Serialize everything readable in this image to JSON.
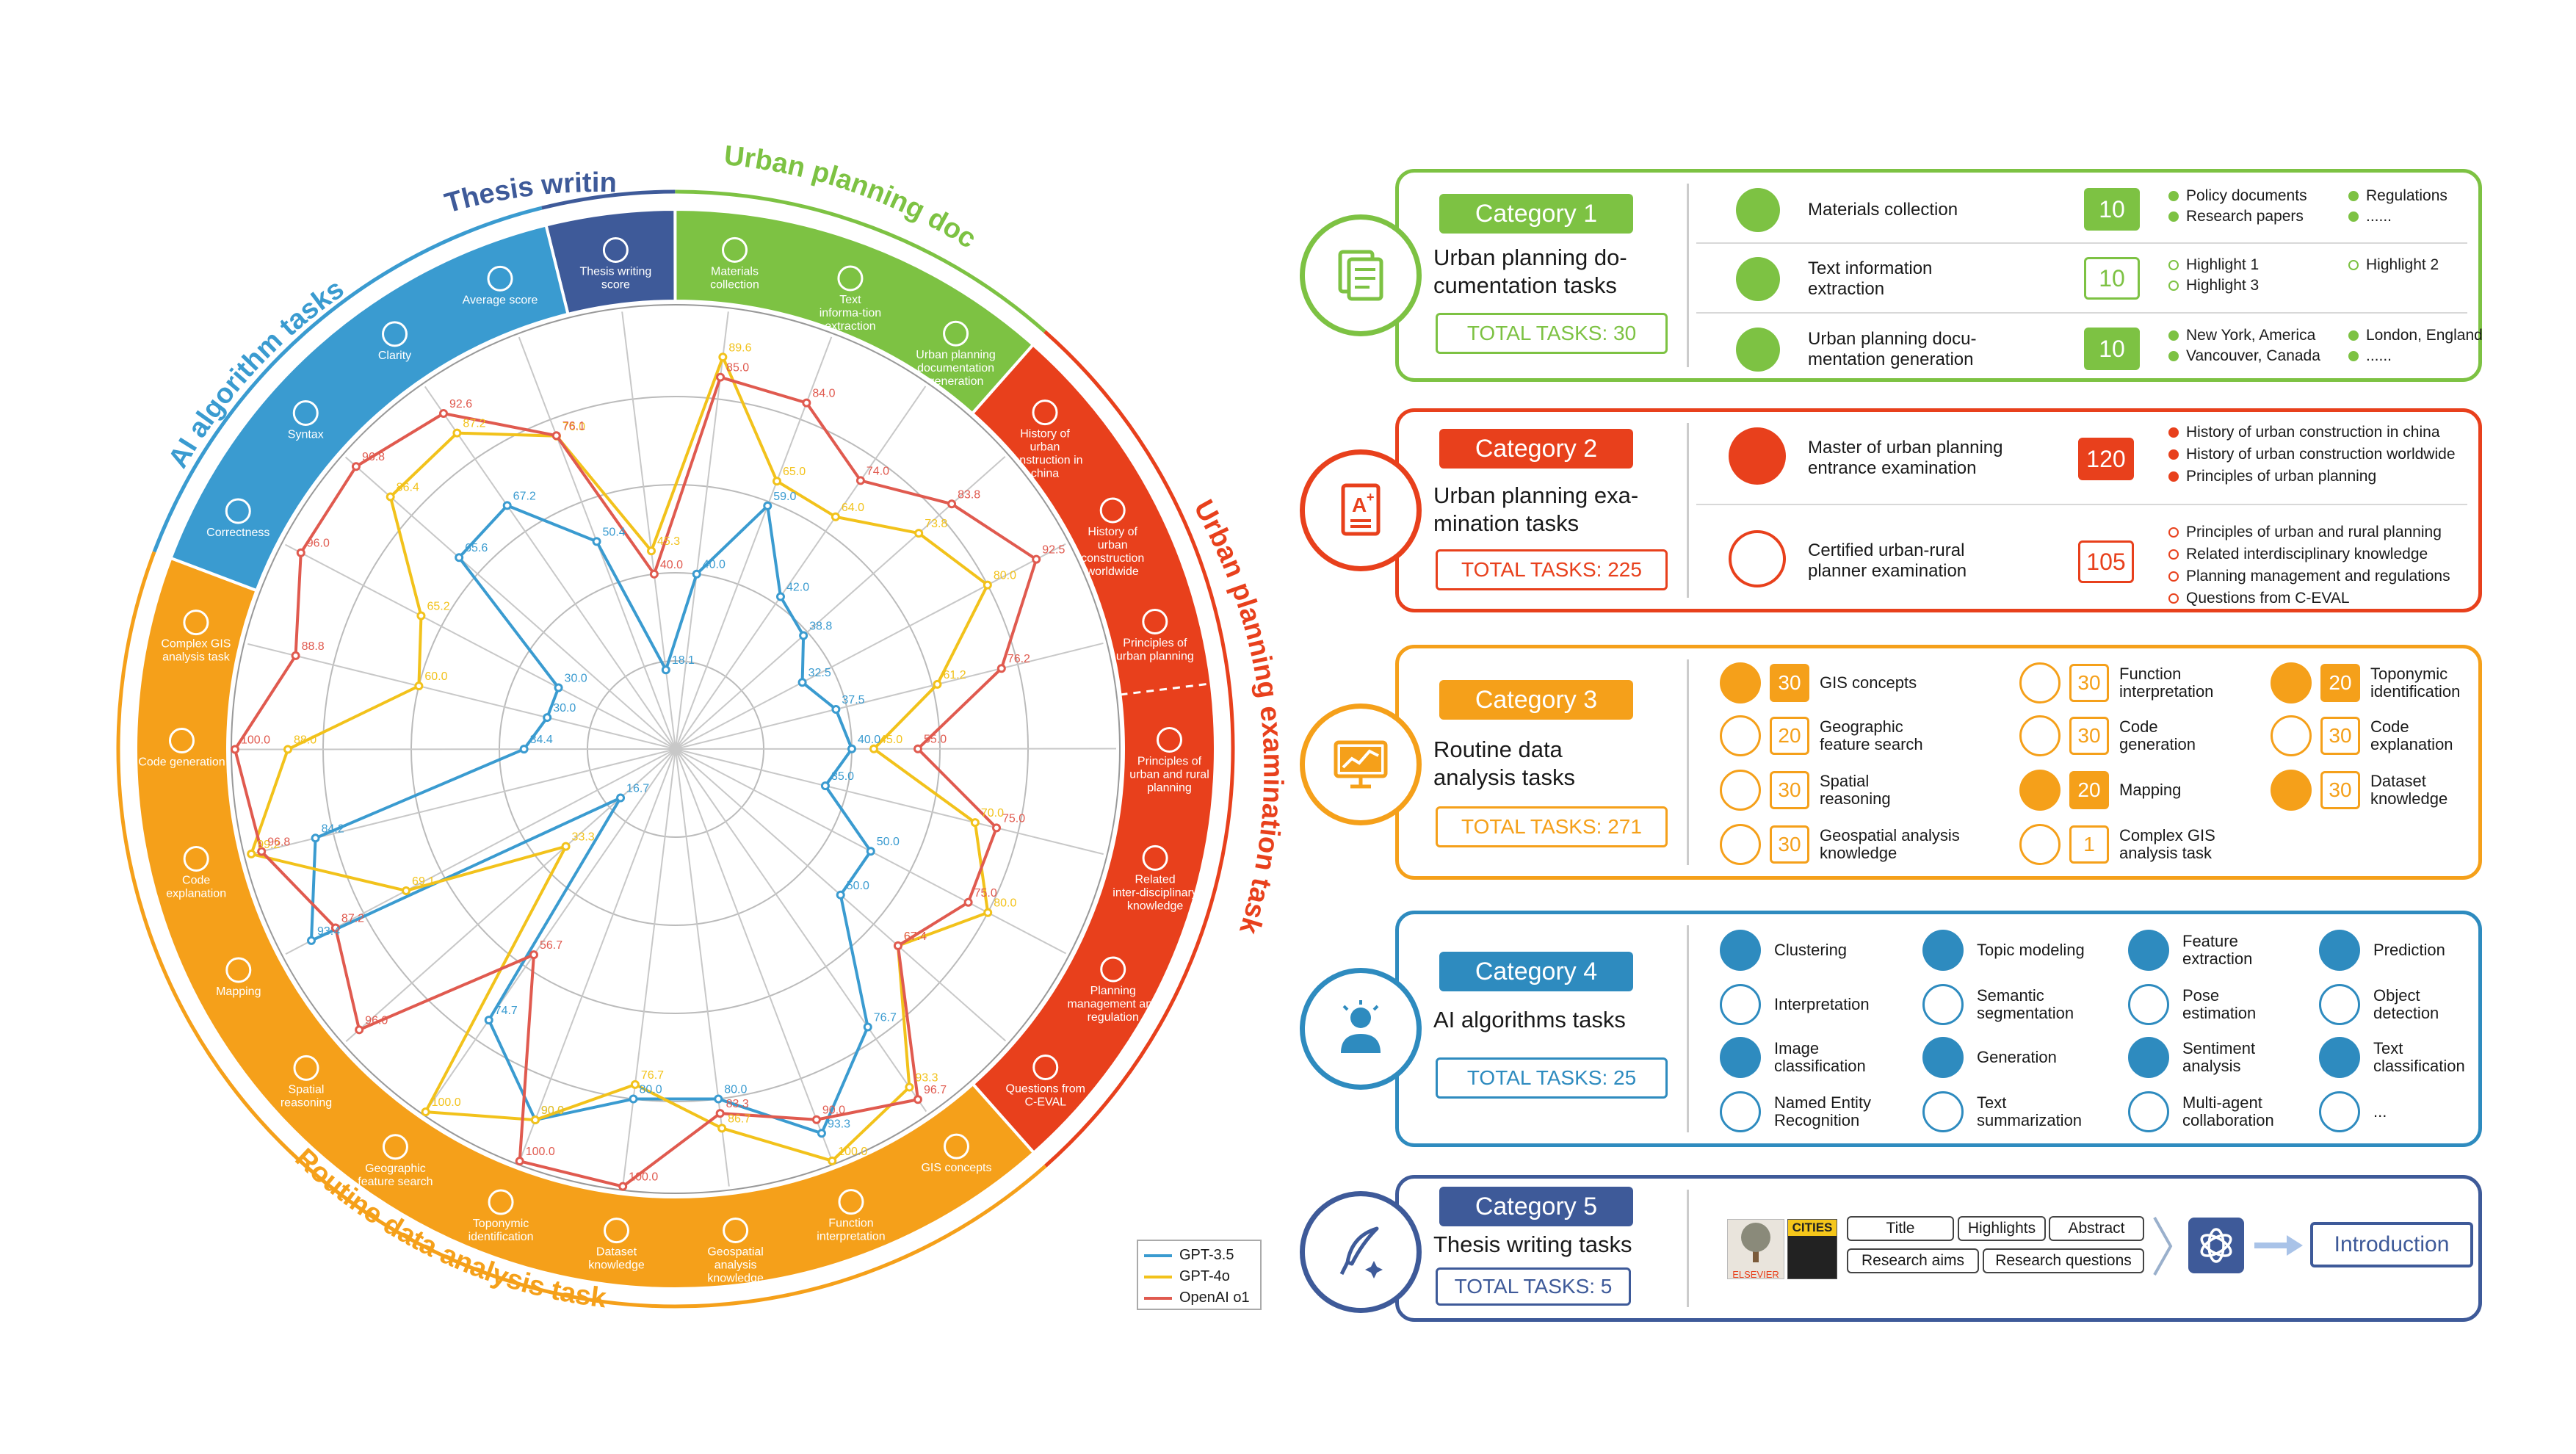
{
  "colors": {
    "green": "#7dc243",
    "red": "#e8401c",
    "orange": "#f5a01a",
    "blue": "#3a9bd0",
    "navy": "#3e5a99",
    "gpt35": "#3a9bd0",
    "gpt4o": "#f2c21b",
    "o1": "#e05a4f"
  },
  "radar": {
    "outer_ring": [
      {
        "label": "Thesis writing",
        "color": "#3e5a99"
      },
      {
        "label": "Urban planning documentation tasks",
        "color": "#7dc243"
      },
      {
        "label": "Urban planning examination tasks",
        "color": "#e8401c"
      },
      {
        "label": "Routine data analysis tasks",
        "color": "#f5a01a"
      },
      {
        "label": "AI algorithm tasks",
        "color": "#3a9bd0"
      }
    ],
    "axis_labels": [
      "Materials collection",
      "Text informa-tion extraction",
      "Urban planning documentation generation",
      "History of urban construction in china",
      "History of urban construction worldwide",
      "Principles of urban planning",
      "Principles of urban and rural planning",
      "Related inter-disciplinary knowledge",
      "Planning management and regulation",
      "Questions from C-EVAL",
      "GIS concepts",
      "Function interpretation",
      "Geospatial analysis knowledge",
      "Dataset knowledge",
      "Toponymic identification",
      "Geographic feature search",
      "Spatial reasoning",
      "Mapping",
      "Code explanation",
      "Code generation",
      "Complex GIS analysis task",
      "Correctness",
      "Syntax",
      "Clarity",
      "Average score",
      "Thesis writing score"
    ]
  },
  "chart_data": {
    "type": "radar",
    "categories": [
      "Materials collection",
      "Text informa-tion extraction",
      "Urban planning documentation generation",
      "History of urban construction in china",
      "History of urban construction worldwide",
      "Principles of urban planning",
      "Principles of urban and rural planning",
      "Related inter-disciplinary knowledge",
      "Planning management and regulation",
      "Questions from C-EVAL",
      "GIS concepts",
      "Function interpretation",
      "Geospatial analysis knowledge",
      "Dataset knowledge",
      "Toponymic identification",
      "Geographic feature search",
      "Spatial reasoning",
      "Mapping",
      "Code explanation",
      "Code generation",
      "Complex GIS analysis task",
      "Correctness",
      "Syntax",
      "Clarity",
      "Average score",
      "Thesis writing score"
    ],
    "series": [
      {
        "name": "GPT-3.5",
        "values": [
          40.0,
          59.0,
          42.0,
          38.8,
          32.5,
          37.5,
          40.0,
          35.0,
          50.0,
          50.0,
          76.7,
          93.3,
          80.0,
          80.0,
          90.0,
          74.7,
          16.7,
          93.4,
          84.2,
          34.4,
          30.0,
          30.0,
          65.6,
          67.2,
          50.4,
          18.1
        ]
      },
      {
        "name": "GPT-4o",
        "values": [
          89.6,
          65.0,
          64.0,
          73.8,
          80.0,
          61.2,
          45.0,
          70.0,
          80.0,
          67.4,
          93.3,
          100.0,
          86.7,
          76.7,
          90.0,
          100.0,
          33.3,
          69.1,
          99.2,
          88.0,
          60.0,
          65.2,
          86.4,
          87.2,
          76.0,
          45.3
        ]
      },
      {
        "name": "OpenAI o1",
        "values": [
          85.0,
          84.0,
          74.0,
          83.8,
          92.5,
          76.2,
          55.0,
          75.0,
          75.0,
          67.4,
          96.7,
          90.0,
          83.3,
          100.0,
          100.0,
          56.7,
          96.0,
          87.2,
          96.8,
          100.0,
          88.8,
          96.0,
          96.8,
          92.6,
          76.1,
          40.0
        ]
      }
    ],
    "data_labels": {
      "GPT-3.5": [
        "40.0",
        "59.0",
        "42.0",
        "38.8",
        "32.5",
        "37.5",
        "40.0",
        "35.0",
        "50.0",
        "50.0",
        "76.7",
        "93.3",
        "80.0",
        "80.0",
        "90.0",
        "74.7",
        "16.7",
        "93.4",
        "84.2",
        "34.4",
        "30.0",
        "30.0",
        "65.6",
        "67.2",
        "50.4",
        "18.1"
      ],
      "GPT-4o": [
        "89.6",
        "65.0",
        "64.0",
        "73.8",
        "80.0",
        "61.2",
        "45.0",
        "70.0",
        "80.0",
        "67.4",
        "93.3",
        "100.0",
        "86.7",
        "76.7",
        "90.0",
        "100.0",
        "33.3",
        "69.1",
        "99.2",
        "88.0",
        "60.0",
        "65.2",
        "86.4",
        "87.2",
        "76.0",
        "45.3"
      ],
      "OpenAI o1": [
        "85.0",
        "84.0",
        "74.0",
        "83.8",
        "92.5",
        "76.2",
        "55.0",
        "75.0",
        "75.0",
        "67.4",
        "96.7",
        "90.0",
        "83.3",
        "100.0",
        "100.0",
        "56.7",
        "96.0",
        "87.2",
        "96.8",
        "100.0",
        "88.8",
        "96.0",
        "96.8",
        "92.6",
        "76.1",
        "40.0"
      ]
    },
    "rlim": [
      0,
      100
    ],
    "legend_position": "bottom-right"
  },
  "legend": [
    {
      "name": "GPT-3.5",
      "color": "#3a9bd0"
    },
    {
      "name": "GPT-4o",
      "color": "#f2c21b"
    },
    {
      "name": "OpenAI o1",
      "color": "#e05a4f"
    }
  ],
  "cat1": {
    "badge": "Category 1",
    "title_l1": "Urban planning do-",
    "title_l2": "cumentation tasks",
    "total": "TOTAL TASKS: 30",
    "rows": [
      {
        "label_l1": "Materials collection",
        "label_l2": "",
        "count": "10",
        "bullets": [
          "Policy documents",
          "Research papers",
          "Regulations",
          "......"
        ]
      },
      {
        "label_l1": "Text information",
        "label_l2": "extraction",
        "count": "10",
        "bullets": [
          "Highlight 1",
          "Highlight 3",
          "Highlight 2",
          ""
        ]
      },
      {
        "label_l1": "Urban planning docu-",
        "label_l2": "mentation generation",
        "count": "10",
        "bullets": [
          "New York, America",
          "Vancouver, Canada",
          "London, England",
          "......"
        ]
      }
    ]
  },
  "cat2": {
    "badge": "Category 2",
    "title_l1": "Urban planning exa-",
    "title_l2": "mination tasks",
    "total": "TOTAL TASKS: 225",
    "rows": [
      {
        "label_l1": "Master of urban planning",
        "label_l2": "entrance examination",
        "count": "120",
        "bullets": [
          "History of urban construction in china",
          "History of urban construction worldwide",
          "Principles of urban planning"
        ]
      },
      {
        "label_l1": "Certified urban-rural",
        "label_l2": "planner examination",
        "count": "105",
        "bullets": [
          "Principles of urban and rural planning",
          "Related interdisciplinary knowledge",
          "Planning management and regulations",
          "Questions from C-EVAL"
        ]
      }
    ]
  },
  "cat3": {
    "badge": "Category 3",
    "title_l1": "Routine data",
    "title_l2": "analysis tasks",
    "total": "TOTAL TASKS: 271",
    "items": [
      {
        "count": "30",
        "l1": "GIS concepts",
        "l2": ""
      },
      {
        "count": "30",
        "l1": "Function",
        "l2": "interpretation"
      },
      {
        "count": "20",
        "l1": "Toponymic",
        "l2": "identification"
      },
      {
        "count": "20",
        "l1": "Geographic",
        "l2": "feature search"
      },
      {
        "count": "30",
        "l1": "Code",
        "l2": "generation"
      },
      {
        "count": "30",
        "l1": "Code",
        "l2": "explanation"
      },
      {
        "count": "30",
        "l1": "Spatial",
        "l2": "reasoning"
      },
      {
        "count": "20",
        "l1": "Mapping",
        "l2": ""
      },
      {
        "count": "30",
        "l1": "Dataset",
        "l2": "knowledge"
      },
      {
        "count": "30",
        "l1": "Geospatial analysis",
        "l2": "knowledge"
      },
      {
        "count": "1",
        "l1": "Complex GIS",
        "l2": "analysis task"
      }
    ]
  },
  "cat4": {
    "badge": "Category 4",
    "title_l1": "AI algorithms tasks",
    "total": "TOTAL TASKS: 25",
    "items": [
      {
        "l1": "Clustering",
        "l2": ""
      },
      {
        "l1": "Topic modeling",
        "l2": ""
      },
      {
        "l1": "Feature",
        "l2": "extraction"
      },
      {
        "l1": "Prediction",
        "l2": ""
      },
      {
        "l1": "Interpretation",
        "l2": ""
      },
      {
        "l1": "Semantic",
        "l2": "segmentation"
      },
      {
        "l1": "Pose",
        "l2": "estimation"
      },
      {
        "l1": "Object",
        "l2": "detection"
      },
      {
        "l1": "Image",
        "l2": "classification"
      },
      {
        "l1": "Generation",
        "l2": ""
      },
      {
        "l1": "Sentiment",
        "l2": "analysis"
      },
      {
        "l1": "Text",
        "l2": "classification"
      },
      {
        "l1": "Named Entity",
        "l2": "Recognition"
      },
      {
        "l1": "Text",
        "l2": "summarization"
      },
      {
        "l1": "Multi-agent",
        "l2": "collaboration"
      },
      {
        "l1": "...",
        "l2": ""
      }
    ]
  },
  "cat5": {
    "badge": "Category 5",
    "title_l1": "Thesis writing tasks",
    "total": "TOTAL TASKS: 5",
    "elsevier": "ELSEVIER",
    "cities": "CITIES",
    "pills": [
      "Title",
      "Highlights",
      "Abstract",
      "Research aims",
      "Research questions"
    ],
    "output": "Introduction"
  }
}
